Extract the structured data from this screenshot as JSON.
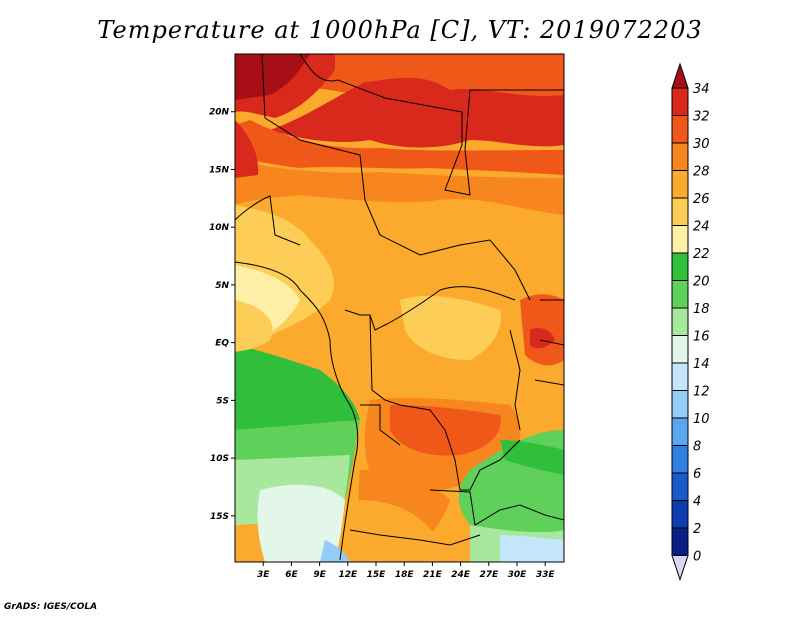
{
  "title": "Temperature at 1000hPa [C], VT: 2019072203",
  "credit": "GrADS: IGES/COLA",
  "map": {
    "lon_range": [
      0,
      35
    ],
    "lat_range": [
      -19,
      25
    ],
    "lat_ticks": [
      "20N",
      "15N",
      "10N",
      "5N",
      "EQ",
      "5S",
      "10S",
      "15S"
    ],
    "lon_ticks": [
      "3E",
      "6E",
      "9E",
      "12E",
      "15E",
      "18E",
      "21E",
      "24E",
      "27E",
      "30E",
      "33E"
    ]
  },
  "colorbar": {
    "labels": [
      "34",
      "32",
      "30",
      "28",
      "26",
      "24",
      "22",
      "20",
      "18",
      "16",
      "14",
      "12",
      "10",
      "8",
      "6",
      "4",
      "2",
      "0"
    ],
    "colors": [
      "#a50f15",
      "#d9281c",
      "#f0581a",
      "#f8861e",
      "#fbaa2e",
      "#fcce58",
      "#fdf0a6",
      "#2fbf3a",
      "#5fd15a",
      "#a7e89c",
      "#e2f6ea",
      "#c5e5fa",
      "#95cbf7",
      "#5aa7ee",
      "#2e7fe0",
      "#1a5acb",
      "#0c3bb2",
      "#0a1f86"
    ],
    "under_color": "#d9d5f5"
  }
}
